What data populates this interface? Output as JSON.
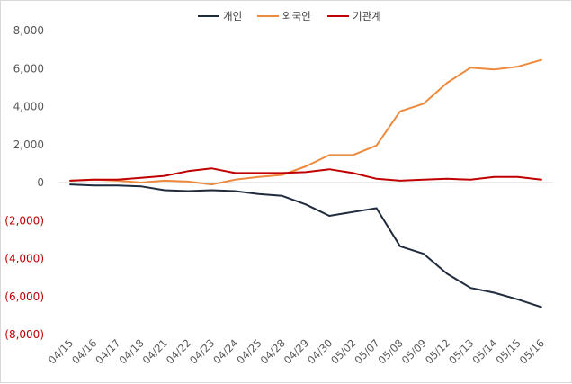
{
  "chart_data": {
    "type": "line",
    "title": "",
    "xlabel": "",
    "ylabel": "",
    "ylim": [
      -8000,
      8000
    ],
    "yticks": [
      8000,
      6000,
      4000,
      2000,
      0,
      -2000,
      -4000,
      -6000,
      -8000
    ],
    "ytick_labels": [
      "8,000",
      "6,000",
      "4,000",
      "2,000",
      "0",
      "(2,000)",
      "(4,000)",
      "(6,000)",
      "(8,000)"
    ],
    "negative_tick_color": "#c00000",
    "grid": false,
    "legend_position": "top",
    "categories": [
      "04/15",
      "04/16",
      "04/17",
      "04/18",
      "04/21",
      "04/22",
      "04/23",
      "04/24",
      "04/25",
      "04/28",
      "04/29",
      "04/30",
      "05/02",
      "05/07",
      "05/08",
      "05/09",
      "05/12",
      "05/13",
      "05/14",
      "05/15",
      "05/16"
    ],
    "series": [
      {
        "name": "개인",
        "color": "#1f2a3c",
        "values": [
          -100,
          -150,
          -150,
          -200,
          -400,
          -450,
          -400,
          -450,
          -600,
          -700,
          -1150,
          -1750,
          -1550,
          -1350,
          -3350,
          -3750,
          -4800,
          -5550,
          -5800,
          -6150,
          -6550
        ]
      },
      {
        "name": "외국인",
        "color": "#ed8a3d",
        "values": [
          100,
          150,
          100,
          0,
          100,
          50,
          -100,
          150,
          300,
          400,
          850,
          1450,
          1450,
          1950,
          3750,
          4150,
          5250,
          6050,
          5950,
          6100,
          6450
        ]
      },
      {
        "name": "기관계",
        "color": "#c00000",
        "values": [
          100,
          150,
          150,
          250,
          350,
          600,
          750,
          500,
          500,
          500,
          550,
          700,
          500,
          200,
          100,
          150,
          200,
          150,
          300,
          300,
          150
        ]
      }
    ]
  }
}
